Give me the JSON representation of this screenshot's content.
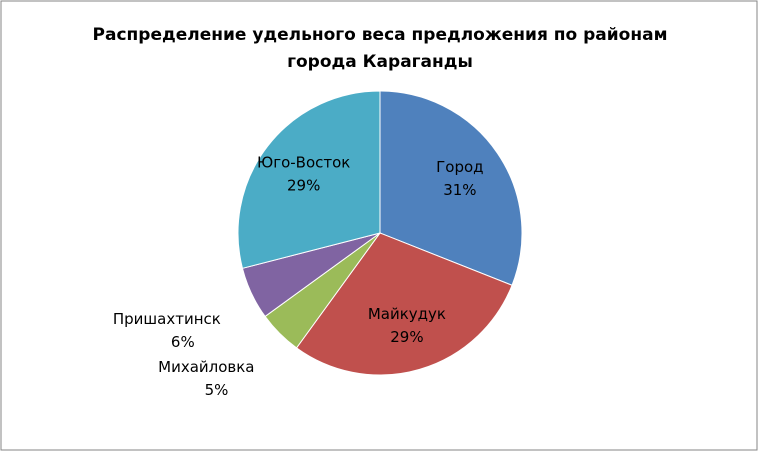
{
  "chart_data": {
    "type": "pie",
    "title": [
      "Распределение удельного веса предложения по районам",
      "города Караганды"
    ],
    "categories": [
      "Город",
      "Майкудук",
      "Михайловка",
      "Пришахтинск",
      "Юго-Восток"
    ],
    "values": [
      31,
      29,
      5,
      6,
      29
    ],
    "value_labels": [
      "31%",
      "29%",
      "5%",
      "6%",
      "29%"
    ],
    "colors": [
      "#4f81bd",
      "#c0504d",
      "#9bbb59",
      "#8064a2",
      "#4bacc6"
    ]
  }
}
